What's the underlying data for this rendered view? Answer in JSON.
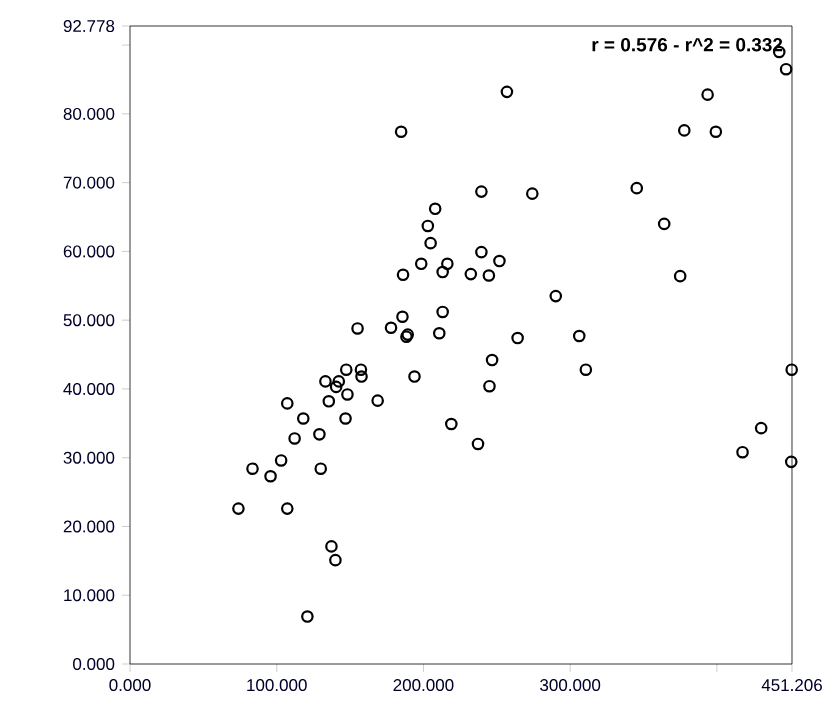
{
  "chart_data": {
    "type": "scatter",
    "marker": "circle",
    "grid": false,
    "annotations": [
      "r = 0.576 - r^2 = 0.332"
    ],
    "xlim": [
      0,
      451.206
    ],
    "ylim": [
      0,
      92.778
    ],
    "xticks": [
      {
        "value": 0,
        "label": "0.000"
      },
      {
        "value": 100,
        "label": "100.000"
      },
      {
        "value": 200,
        "label": "200.000"
      },
      {
        "value": 300,
        "label": "300.000"
      },
      {
        "value": 400,
        "label": null
      },
      {
        "value": 451.206,
        "label": "451.206"
      }
    ],
    "yticks": [
      {
        "value": 0,
        "label": "0.000"
      },
      {
        "value": 10,
        "label": "10.000"
      },
      {
        "value": 20,
        "label": "20.000"
      },
      {
        "value": 30,
        "label": "30.000"
      },
      {
        "value": 40,
        "label": "40.000"
      },
      {
        "value": 50,
        "label": "50.000"
      },
      {
        "value": 60,
        "label": "60.000"
      },
      {
        "value": 70,
        "label": "70.000"
      },
      {
        "value": 80,
        "label": "80.000"
      },
      {
        "value": 90,
        "label": null
      },
      {
        "value": 92.778,
        "label": "92.778"
      }
    ],
    "series": [
      {
        "color": "#000000",
        "x": [
          73.9,
          83.5,
          95.8,
          103,
          107.2,
          107.2,
          112.2,
          118.1,
          120.9,
          129.1,
          130,
          133.2,
          135.5,
          137.3,
          140,
          140.5,
          142.3,
          147.4,
          148.2,
          146.9,
          157.4,
          157.8,
          168.8,
          188.4,
          193.9,
          184.8,
          155.1,
          177.9,
          185.7,
          189.3,
          186.1,
          198.5,
          203,
          256.9,
          393.7,
          377.8,
          399.3,
          442.5,
          447.2,
          239.5,
          274.2,
          345.4,
          208,
          204.9,
          364.1,
          239.5,
          251.8,
          216.3,
          213.1,
          232.3,
          244.6,
          375,
          290.2,
          213.1,
          210.8,
          264.2,
          306.2,
          246.8,
          245,
          310.7,
          219,
          237.2,
          430.2,
          417.5,
          450.7,
          451
        ],
        "values": [
          22.6,
          28.4,
          27.3,
          29.6,
          37.9,
          22.6,
          32.8,
          35.7,
          6.9,
          33.4,
          28.4,
          41.1,
          38.2,
          17.1,
          15.1,
          40.3,
          41.1,
          42.8,
          39.2,
          35.7,
          42.8,
          41.8,
          38.3,
          47.6,
          41.8,
          77.4,
          48.8,
          48.9,
          50.5,
          47.9,
          56.6,
          58.2,
          63.7,
          83.2,
          82.8,
          77.6,
          77.4,
          89.0,
          86.5,
          68.7,
          68.4,
          69.2,
          66.2,
          61.2,
          64.0,
          59.9,
          58.6,
          58.2,
          57.0,
          56.7,
          56.5,
          56.4,
          53.5,
          51.2,
          48.1,
          47.4,
          47.7,
          44.2,
          40.4,
          42.8,
          34.9,
          32.0,
          34.3,
          30.8,
          29.4,
          42.8
        ]
      }
    ]
  }
}
